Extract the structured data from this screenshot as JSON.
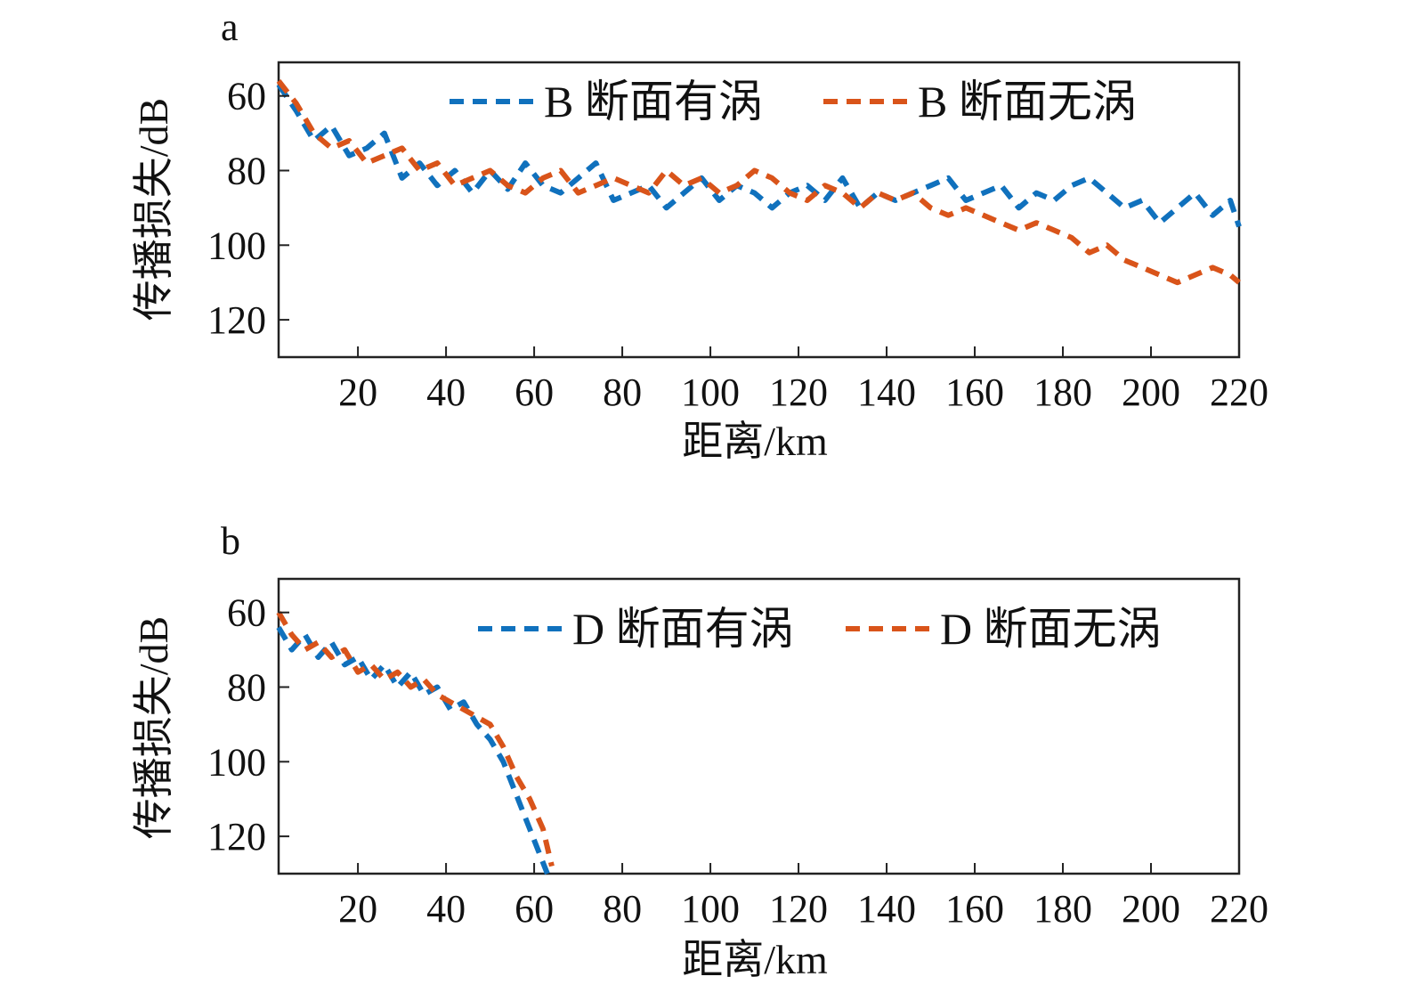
{
  "colors": {
    "blue": "#1071bd",
    "orange": "#d9541a"
  },
  "chart_data": [
    {
      "type": "line",
      "panel_label": "a",
      "xlabel": "距离/km",
      "ylabel": "传播损失/dB",
      "xlim": [
        2,
        220
      ],
      "ylim": [
        130,
        51
      ],
      "y_inverted": true,
      "grid": false,
      "legend_position": "top",
      "xticks": [
        20,
        40,
        60,
        80,
        100,
        120,
        140,
        160,
        180,
        200,
        220
      ],
      "yticks": [
        60,
        80,
        100,
        120
      ],
      "x": [
        2,
        6,
        10,
        14,
        18,
        22,
        26,
        30,
        34,
        38,
        42,
        46,
        50,
        54,
        58,
        62,
        66,
        70,
        74,
        78,
        82,
        86,
        90,
        94,
        98,
        102,
        106,
        110,
        114,
        118,
        122,
        126,
        130,
        134,
        138,
        142,
        146,
        150,
        154,
        158,
        162,
        166,
        170,
        174,
        178,
        182,
        186,
        190,
        194,
        198,
        202,
        206,
        210,
        214,
        218,
        220
      ],
      "series": [
        {
          "name": "B 断面有涡",
          "color": "#1071bd",
          "values": [
            57,
            64,
            72,
            68,
            76,
            74,
            70,
            82,
            78,
            84,
            80,
            86,
            80,
            85,
            78,
            84,
            86,
            82,
            78,
            88,
            86,
            84,
            90,
            86,
            82,
            88,
            84,
            86,
            90,
            86,
            84,
            88,
            82,
            90,
            86,
            88,
            86,
            84,
            82,
            88,
            86,
            84,
            90,
            86,
            88,
            84,
            82,
            86,
            90,
            88,
            94,
            90,
            86,
            92,
            88,
            95
          ]
        },
        {
          "name": "B 断面无涡",
          "color": "#d9541a",
          "values": [
            56,
            62,
            70,
            74,
            72,
            78,
            76,
            74,
            80,
            78,
            84,
            82,
            80,
            84,
            86,
            82,
            80,
            86,
            84,
            82,
            84,
            86,
            80,
            84,
            82,
            86,
            84,
            80,
            82,
            86,
            88,
            84,
            86,
            90,
            86,
            88,
            86,
            90,
            92,
            90,
            92,
            94,
            96,
            94,
            96,
            98,
            102,
            100,
            104,
            106,
            108,
            110,
            108,
            106,
            108,
            110
          ]
        }
      ]
    },
    {
      "type": "line",
      "panel_label": "b",
      "xlabel": "距离/km",
      "ylabel": "传播损失/dB",
      "xlim": [
        2,
        220
      ],
      "ylim": [
        130,
        51
      ],
      "y_inverted": true,
      "grid": false,
      "legend_position": "top",
      "xticks": [
        20,
        40,
        60,
        80,
        100,
        120,
        140,
        160,
        180,
        200,
        220
      ],
      "yticks": [
        60,
        80,
        100,
        120
      ],
      "series": [
        {
          "name": "D 断面有涡",
          "color": "#1071bd",
          "x": [
            2,
            5,
            8,
            11,
            14,
            17,
            20,
            23,
            26,
            29,
            32,
            35,
            38,
            41,
            44,
            47,
            50,
            53,
            55,
            57,
            59,
            61,
            63
          ],
          "values": [
            64,
            70,
            66,
            72,
            68,
            74,
            72,
            78,
            74,
            80,
            76,
            82,
            80,
            86,
            84,
            90,
            94,
            100,
            106,
            112,
            118,
            124,
            130
          ]
        },
        {
          "name": "D 断面无涡",
          "color": "#d9541a",
          "x": [
            2,
            5,
            8,
            11,
            14,
            17,
            20,
            23,
            26,
            29,
            32,
            35,
            38,
            41,
            44,
            47,
            50,
            53,
            56,
            59,
            62,
            64
          ],
          "values": [
            60,
            66,
            70,
            68,
            72,
            70,
            76,
            74,
            78,
            76,
            80,
            78,
            82,
            84,
            86,
            88,
            90,
            96,
            104,
            110,
            118,
            128
          ]
        }
      ]
    }
  ]
}
